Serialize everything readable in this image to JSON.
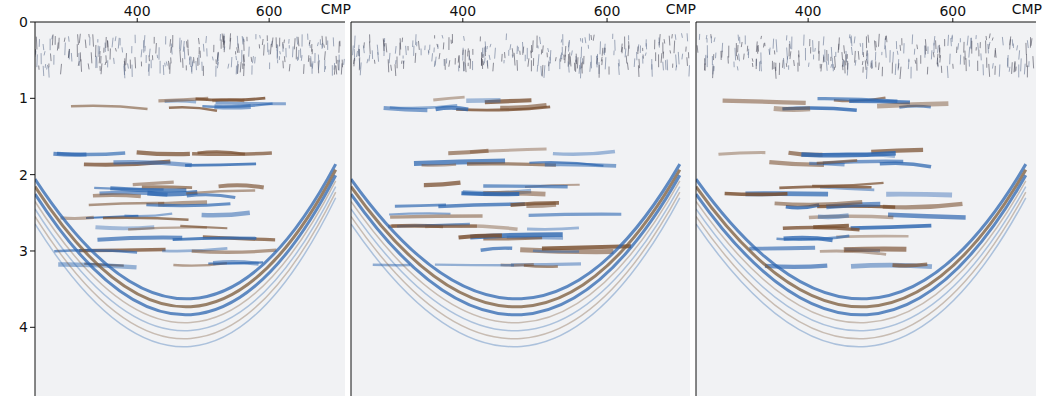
{
  "chart_data": [
    {
      "type": "image",
      "x_label": "CMP",
      "xlim": [
        245,
        715
      ],
      "xticks": [
        400,
        600
      ],
      "ylim": [
        0,
        4.9
      ],
      "yticks": [
        0,
        1,
        2,
        3,
        4
      ]
    },
    {
      "type": "image",
      "x_label": "CMP",
      "xlim": [
        245,
        715
      ],
      "xticks": [
        400,
        600
      ],
      "ylim": [
        0,
        4.9
      ],
      "yticks": [
        0,
        1,
        2,
        3,
        4
      ],
      "tick_labels": "x"
    },
    {
      "type": "image",
      "x_label": "CMP",
      "xlim": [
        245,
        715
      ],
      "xticks": [
        400,
        600
      ],
      "ylim": [
        0,
        4.9
      ],
      "yticks": [
        0,
        1,
        2,
        3,
        4
      ],
      "tick_labels": "x"
    }
  ]
}
